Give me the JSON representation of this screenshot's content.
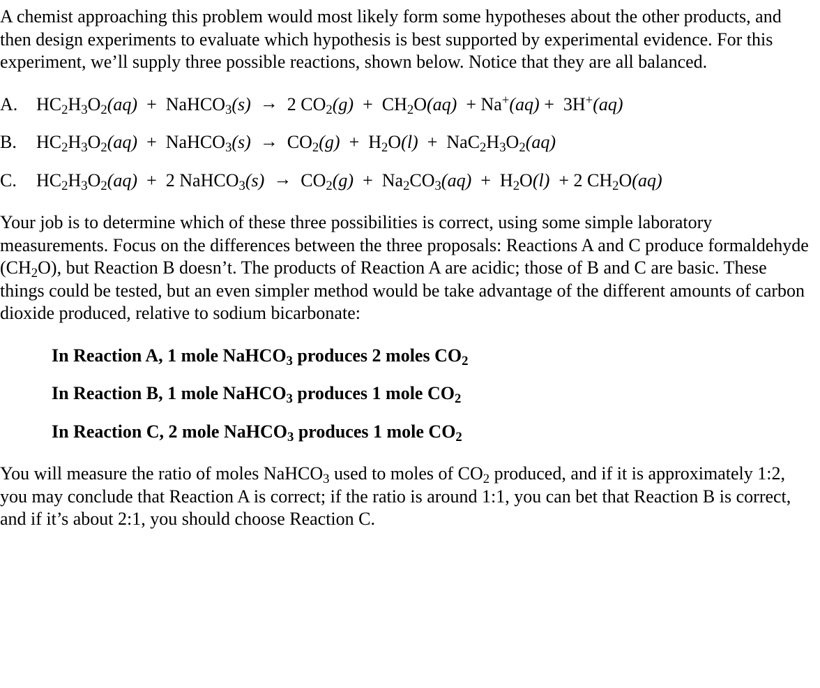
{
  "intro_paragraph": "A chemist approaching this problem would most likely form some hypotheses about the other products, and then design experiments to evaluate which hypothesis is best supported by experimental evidence. For this experiment, we’ll supply three possible reactions, shown below. Notice that they are all balanced.",
  "reactions": {
    "A": {
      "label": "A.",
      "reactant1": {
        "formula": "HC2H3O2",
        "state": "aq"
      },
      "plus1": "  +  ",
      "reactant2": {
        "formula": "NaHCO3",
        "state": "s"
      },
      "arrow": "  →  ",
      "products_text": "2 CO2(g)  +  CH2O(aq)  + Na+(aq) +  3H+(aq)"
    },
    "B": {
      "label": "B.",
      "products_text": "CO2(g)  +  H2O(l)  +  NaC2H3O2(aq)"
    },
    "C": {
      "label": "C.",
      "coef2": "2 ",
      "products_text": "CO2(g)  +  Na2CO3(aq)  +  H2O(l)  + 2 CH2O(aq)"
    }
  },
  "mid_paragraph_parts": {
    "p1": "Your job is to determine which of these three possibilities is correct, using some simple laboratory measurements. Focus on the differences between the three proposals: Reactions A and C produce formaldehyde (CH",
    "p2": "O), but Reaction B doesn’t. The products of Reaction A are acidic; those of B and C are basic. These things could be tested, but an even simpler method would be take advantage of the different amounts of carbon dioxide produced, relative to sodium bicarbonate:"
  },
  "ratio_lines": {
    "a_pre": "In Reaction A, 1 mole NaHCO",
    "a_mid": " produces 2 moles CO",
    "b_pre": "In Reaction B, 1 mole NaHCO",
    "b_mid": " produces 1 mole CO",
    "c_pre": "In Reaction C, 2 mole NaHCO",
    "c_mid": " produces 1 mole CO"
  },
  "final_paragraph_parts": {
    "p1": "You will measure the ratio of moles NaHCO",
    "p2": " used to moles of CO",
    "p3": " produced, and if it is approximately 1:2, you may conclude that Reaction A is correct; if the ratio is around 1:1, you can bet that Reaction B is correct, and if it’s about 2:1, you should choose Reaction C."
  },
  "subscripts": {
    "two": "2",
    "three": "3"
  },
  "superscripts": {
    "plus": "+"
  }
}
